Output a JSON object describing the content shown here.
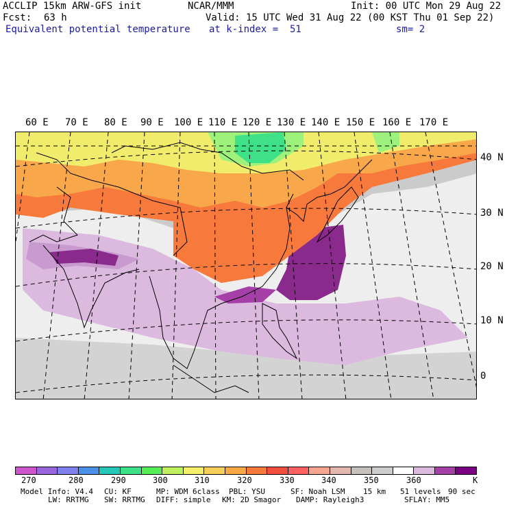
{
  "header": {
    "model": "ACCLIP 15km ARW-GFS init",
    "center": "NCAR/MMM",
    "init": "Init: 00 UTC Mon 29 Aug 22",
    "fcst_label": "Fcst:",
    "fcst_value": "63 h",
    "valid": "Valid: 15 UTC Wed 31 Aug 22 (00 KST Thu 01 Sep 22)",
    "field": "Equivalent potential temperature",
    "level": "at k-index =  51",
    "smooth": "sm= 2"
  },
  "map": {
    "lon_labels": [
      "60 E",
      "70 E",
      "80 E",
      "90 E",
      "100 E",
      "110 E",
      "120 E",
      "130 E",
      "140 E",
      "150 E",
      "160 E",
      "170 E"
    ],
    "lat_labels": [
      "40 N",
      "30 N",
      "20 N",
      "10 N",
      "0"
    ]
  },
  "colorbar": {
    "colors": [
      "#cc55cc",
      "#9966dd",
      "#7f7fee",
      "#4a8fe8",
      "#27c7b8",
      "#3ee088",
      "#55ee55",
      "#bff060",
      "#f4ee6a",
      "#f8cf5a",
      "#f7a844",
      "#f77a3c",
      "#f24e3c",
      "#ff6060",
      "#f5a590",
      "#e2b8ac",
      "#c8c0bb",
      "#cdcdcd",
      "#ffffff",
      "#dcb9df",
      "#a640a8",
      "#7a0081"
    ],
    "labels": [
      "270",
      "280",
      "290",
      "300",
      "310",
      "320",
      "330",
      "340",
      "350",
      "360"
    ],
    "unit": "K"
  },
  "model_info": {
    "line1": [
      "Model Info: V4.4",
      "CU: KF",
      "MP: WDM 6class",
      "PBL: YSU",
      "SF: Noah LSM",
      "15 km",
      "51 levels",
      "90 sec"
    ],
    "line2": [
      "LW: RRTMG",
      "SW: RRTMG",
      "DIFF: simple",
      "KM: 2D Smagor",
      "DAMP: Rayleigh3",
      "SFLAY: MM5"
    ]
  }
}
